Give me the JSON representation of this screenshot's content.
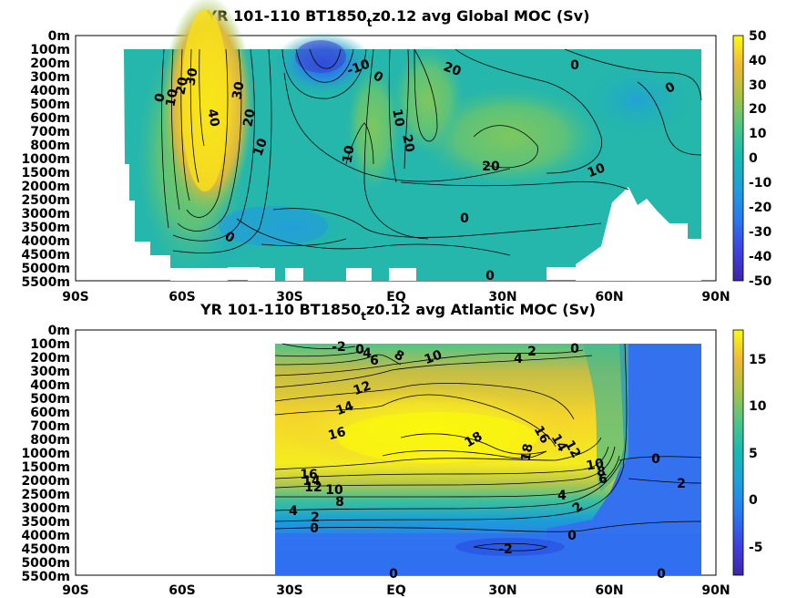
{
  "chart_data": [
    {
      "type": "heatmap",
      "title_main": "YR 101-110 BT1850",
      "title_sub": "t",
      "title_rest": "z0.12 avg  Global MOC (Sv)",
      "x_ticks": [
        "90S",
        "60S",
        "30S",
        "EQ",
        "30N",
        "60N",
        "90N"
      ],
      "y_ticks": [
        "0m",
        "100m",
        "200m",
        "300m",
        "400m",
        "500m",
        "600m",
        "700m",
        "800m",
        "1000m",
        "1500m",
        "2000m",
        "2500m",
        "3000m",
        "3500m",
        "4000m",
        "4500m",
        "5000m",
        "5500m"
      ],
      "colorbar_ticks": [
        "50",
        "40",
        "30",
        "20",
        "10",
        "0",
        "-10",
        "-20",
        "-30",
        "-40",
        "-50"
      ],
      "colorbar_range": [
        -50,
        50
      ],
      "contour_labels": [
        "0",
        "10",
        "20",
        "30",
        "40",
        "30",
        "20",
        "10",
        "0",
        "-10",
        "0",
        "10",
        "10",
        "20",
        "20",
        "0",
        "0",
        "20",
        "10",
        "0",
        "0"
      ],
      "colors": {
        "low": "#3e26a8",
        "mid": "#22b6b0",
        "high": "#f9fb0e"
      }
    },
    {
      "type": "heatmap",
      "title_main": "YR 101-110 BT1850",
      "title_sub": "t",
      "title_rest": "z0.12 avg  Atlantic MOC (Sv)",
      "x_ticks": [
        "90S",
        "60S",
        "30S",
        "EQ",
        "30N",
        "60N",
        "90N"
      ],
      "y_ticks": [
        "0m",
        "100m",
        "200m",
        "300m",
        "400m",
        "500m",
        "600m",
        "700m",
        "800m",
        "1000m",
        "1500m",
        "2000m",
        "2500m",
        "3000m",
        "3500m",
        "4000m",
        "4500m",
        "5000m",
        "5500m"
      ],
      "colorbar_ticks": [
        "15",
        "10",
        "5",
        "0",
        "-5"
      ],
      "colorbar_range": [
        -8,
        18
      ],
      "contour_labels": [
        "-2",
        "0",
        "4",
        "6",
        "8",
        "10",
        "2",
        "4",
        "0",
        "12",
        "14",
        "16",
        "18",
        "16",
        "14",
        "12",
        "18",
        "10",
        "8",
        "6",
        "0",
        "2",
        "16",
        "14",
        "12",
        "10",
        "8",
        "4",
        "2",
        "0",
        "4",
        "2",
        "0",
        "-2",
        "0",
        "0"
      ],
      "colors": {
        "low": "#3e26a8",
        "mid": "#22b6b0",
        "high": "#f9fb0e"
      }
    }
  ]
}
